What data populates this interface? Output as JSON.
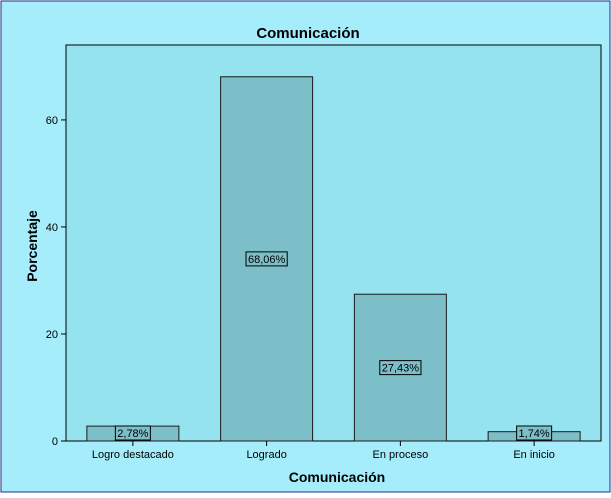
{
  "chart_data": {
    "type": "bar",
    "title": "Comunicación",
    "xlabel": "Comunicación",
    "ylabel": "Porcentaje",
    "categories": [
      "Logro destacado",
      "Logrado",
      "En proceso",
      "En inicio"
    ],
    "values": [
      2.78,
      68.06,
      27.43,
      1.74
    ],
    "data_labels": [
      "2,78%",
      "68,06%",
      "27,43%",
      "1,74%"
    ],
    "yticks": [
      0,
      20,
      40,
      60
    ],
    "ylim": [
      0,
      74
    ],
    "grid": false,
    "colors": {
      "background": "#a5edfb",
      "plot_area": "#94e3ef",
      "bar_fill": "#7cbfc9",
      "bar_stroke": "#1a1a1a",
      "label_box": "#7cbfc9",
      "border": "#1f2f8f"
    }
  }
}
